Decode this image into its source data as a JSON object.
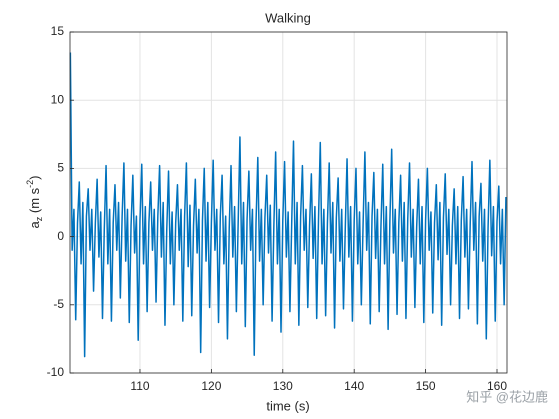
{
  "chart_data": {
    "type": "line",
    "title": "Walking",
    "xlabel": "time (s)",
    "ylabel": {
      "base": "a",
      "sub": "z",
      "unit": " (m s",
      "sup": "-2",
      "close": ")"
    },
    "watermark": "知乎 @花边鹿",
    "xlim": [
      100.2,
      161.4
    ],
    "ylim": [
      -10,
      15
    ],
    "xticks": [
      110,
      120,
      130,
      140,
      150,
      160
    ],
    "yticks": [
      -10,
      -5,
      0,
      5,
      10,
      15
    ],
    "grid": true,
    "x": [
      100.25,
      100.5,
      100.75,
      101,
      101.25,
      101.5,
      101.75,
      102,
      102.25,
      102.5,
      102.75,
      103,
      103.25,
      103.5,
      103.75,
      104,
      104.25,
      104.5,
      104.75,
      105,
      105.25,
      105.5,
      105.75,
      106,
      106.25,
      106.5,
      106.75,
      107,
      107.25,
      107.5,
      107.75,
      108,
      108.25,
      108.5,
      108.75,
      109,
      109.25,
      109.5,
      109.75,
      110,
      110.25,
      110.5,
      110.75,
      111,
      111.25,
      111.5,
      111.75,
      112,
      112.25,
      112.5,
      112.75,
      113,
      113.25,
      113.5,
      113.75,
      114,
      114.25,
      114.5,
      114.75,
      115,
      115.25,
      115.5,
      115.75,
      116,
      116.25,
      116.5,
      116.75,
      117,
      117.25,
      117.5,
      117.75,
      118,
      118.25,
      118.5,
      118.75,
      119,
      119.25,
      119.5,
      119.75,
      120,
      120.25,
      120.5,
      120.75,
      121,
      121.25,
      121.5,
      121.75,
      122,
      122.25,
      122.5,
      122.75,
      123,
      123.25,
      123.5,
      123.75,
      124,
      124.25,
      124.5,
      124.75,
      125,
      125.25,
      125.5,
      125.75,
      126,
      126.25,
      126.5,
      126.75,
      127,
      127.25,
      127.5,
      127.75,
      128,
      128.25,
      128.5,
      128.75,
      129,
      129.25,
      129.5,
      129.75,
      130,
      130.25,
      130.5,
      130.75,
      131,
      131.25,
      131.5,
      131.75,
      132,
      132.25,
      132.5,
      132.75,
      133,
      133.25,
      133.5,
      133.75,
      134,
      134.25,
      134.5,
      134.75,
      135,
      135.25,
      135.5,
      135.75,
      136,
      136.25,
      136.5,
      136.75,
      137,
      137.25,
      137.5,
      137.75,
      138,
      138.25,
      138.5,
      138.75,
      139,
      139.25,
      139.5,
      139.75,
      140,
      140.25,
      140.5,
      140.75,
      141,
      141.25,
      141.5,
      141.75,
      142,
      142.25,
      142.5,
      142.75,
      143,
      143.25,
      143.5,
      143.75,
      144,
      144.25,
      144.5,
      144.75,
      145,
      145.25,
      145.5,
      145.75,
      146,
      146.25,
      146.5,
      146.75,
      147,
      147.25,
      147.5,
      147.75,
      148,
      148.25,
      148.5,
      148.75,
      149,
      149.25,
      149.5,
      149.75,
      150,
      150.25,
      150.5,
      150.75,
      151,
      151.25,
      151.5,
      151.75,
      152,
      152.25,
      152.5,
      152.75,
      153,
      153.25,
      153.5,
      153.75,
      154,
      154.25,
      154.5,
      154.75,
      155,
      155.25,
      155.5,
      155.75,
      156,
      156.25,
      156.5,
      156.75,
      157,
      157.25,
      157.5,
      157.75,
      158,
      158.25,
      158.5,
      158.75,
      159,
      159.25,
      159.5,
      159.75,
      160,
      160.25,
      160.5,
      160.75,
      161,
      161.25
    ],
    "series": [
      {
        "name": "a_z",
        "color": "#0072bd",
        "values": [
          13.5,
          -1,
          2,
          -6.1,
          1,
          4,
          -2,
          2.5,
          -8.8,
          1.5,
          3.5,
          -1,
          2,
          -4,
          1,
          4.2,
          -1.5,
          1.8,
          -6,
          0.5,
          5.2,
          -2,
          2,
          -6.2,
          1,
          3.8,
          -1,
          2.5,
          -4.5,
          1.5,
          5.4,
          -1.8,
          2,
          -6.3,
          0.8,
          4.5,
          -1.2,
          1.5,
          -7.6,
          1.2,
          5.3,
          -2,
          2.2,
          -5.5,
          1,
          4,
          -1,
          2,
          -4.8,
          1.5,
          5.2,
          -1.5,
          2.5,
          -6.5,
          0.5,
          4.8,
          -2,
          1.8,
          -5,
          1,
          3.8,
          -1,
          2,
          -6.2,
          1.5,
          5.4,
          -2.2,
          2.3,
          -5.8,
          0.8,
          4.2,
          -1.2,
          2,
          -8.5,
          1.2,
          5,
          -1.8,
          2.5,
          -5.2,
          1,
          5.6,
          -1,
          2,
          -6.3,
          1.5,
          4.5,
          -2,
          1.5,
          -7.5,
          0.6,
          5.2,
          -1.5,
          2.2,
          -5.5,
          1,
          7.3,
          -2,
          2.5,
          -6.6,
          1.3,
          4.8,
          -1,
          2,
          -8.7,
          1,
          5.8,
          -1.8,
          2,
          -5,
          1.4,
          4.5,
          -1.2,
          2.3,
          -6.2,
          0.8,
          6.2,
          -2,
          2,
          -7,
          1.2,
          5.5,
          -1.5,
          1.8,
          -5.5,
          1,
          7,
          -2,
          2.5,
          -6.5,
          1.5,
          5.2,
          -1,
          2,
          -5.2,
          0.8,
          4.6,
          -1.6,
          2.2,
          -6,
          1.2,
          6.9,
          -2,
          2,
          -5.8,
          1,
          5.4,
          -1.2,
          2.5,
          -6.7,
          1.4,
          4.3,
          -1.8,
          2,
          -5.3,
          0.6,
          5.7,
          -1.5,
          2.2,
          -6.2,
          1.2,
          5,
          -2,
          1.8,
          -5,
          1,
          6.2,
          -1,
          2.5,
          -6.4,
          1.5,
          4.7,
          -1.6,
          2,
          -5.5,
          0.8,
          5.3,
          -2,
          2.2,
          -6.8,
          1.2,
          6.4,
          -1.2,
          2,
          -5.7,
          1,
          4.5,
          -1.8,
          2.5,
          -6,
          1.3,
          5.4,
          -1.5,
          2,
          -5.2,
          0.7,
          4.2,
          -2,
          2.2,
          -6.3,
          1.2,
          5,
          -1,
          1.8,
          -5.6,
          1,
          3.8,
          -1.7,
          2.5,
          -6.5,
          1.4,
          4.6,
          -1.3,
          2,
          -5,
          0.8,
          3.5,
          -2,
          2.2,
          -6,
          1.2,
          4.4,
          -1.5,
          2,
          -5.3,
          1,
          5.5,
          -1,
          2.5,
          -6.4,
          1.5,
          3.9,
          -1.8,
          2,
          -7.5,
          0.7,
          5.6,
          -1.4,
          2.2,
          -6.2,
          1.1,
          3.7,
          -2,
          2,
          -5,
          2.9
        ]
      }
    ]
  }
}
